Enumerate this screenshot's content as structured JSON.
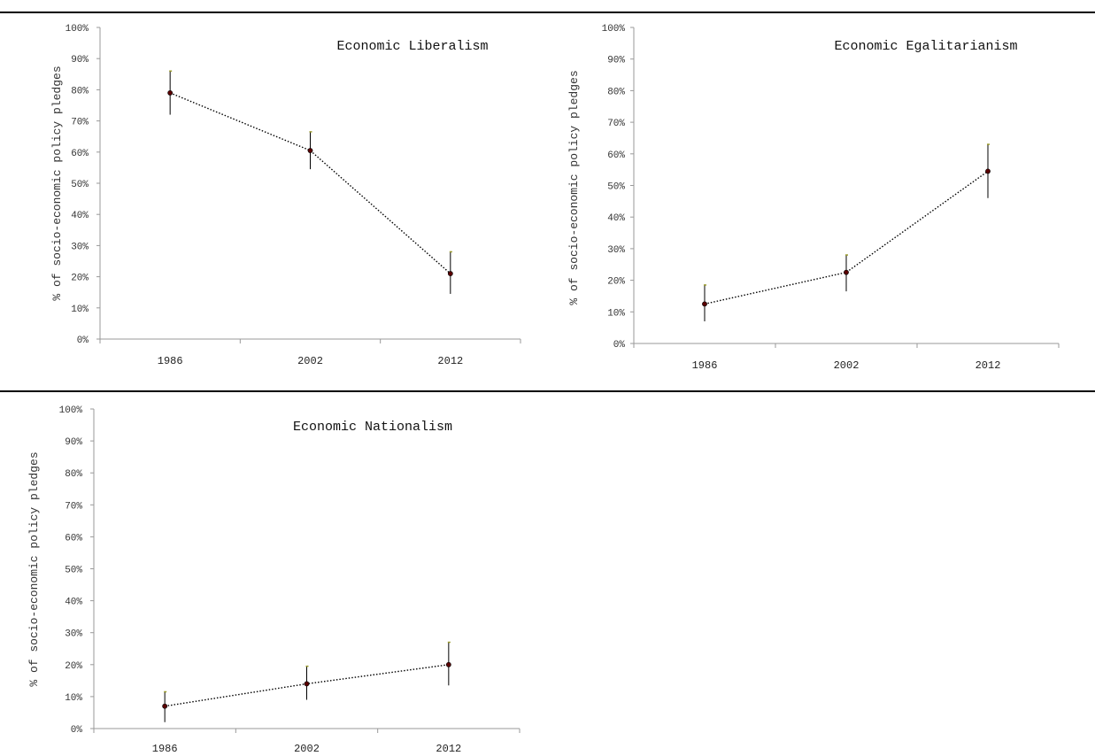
{
  "chart_data": [
    {
      "type": "line",
      "title": "Economic Liberalism",
      "ylabel": "% of socio-economic policy pledges",
      "xlabel": "",
      "categories": [
        "1986",
        "2002",
        "2012"
      ],
      "values": [
        79,
        60.5,
        21
      ],
      "error_low": [
        72,
        54.5,
        14.5
      ],
      "error_high": [
        86,
        66.5,
        28
      ],
      "ylim": [
        0,
        100
      ],
      "yticks": [
        "0%",
        "10%",
        "20%",
        "30%",
        "40%",
        "50%",
        "60%",
        "70%",
        "80%",
        "90%",
        "100%"
      ],
      "grid": false,
      "line_style": "dotted",
      "marker_color": "#5a0000"
    },
    {
      "type": "line",
      "title": "Economic Egalitarianism",
      "ylabel": "% of socio-economic policy pledges",
      "xlabel": "",
      "categories": [
        "1986",
        "2002",
        "2012"
      ],
      "values": [
        12.5,
        22.5,
        54.5
      ],
      "error_low": [
        7,
        16.5,
        46
      ],
      "error_high": [
        18.5,
        28,
        63
      ],
      "ylim": [
        0,
        100
      ],
      "yticks": [
        "0%",
        "10%",
        "20%",
        "30%",
        "40%",
        "50%",
        "60%",
        "70%",
        "80%",
        "90%",
        "100%"
      ],
      "grid": false,
      "line_style": "dotted",
      "marker_color": "#5a0000"
    },
    {
      "type": "line",
      "title": "Economic Nationalism",
      "ylabel": "% of socio-economic policy pledges",
      "xlabel": "",
      "categories": [
        "1986",
        "2002",
        "2012"
      ],
      "values": [
        7,
        14,
        20
      ],
      "error_low": [
        2,
        9,
        13.5
      ],
      "error_high": [
        11.5,
        19.5,
        27
      ],
      "ylim": [
        0,
        100
      ],
      "yticks": [
        "0%",
        "10%",
        "20%",
        "30%",
        "40%",
        "50%",
        "60%",
        "70%",
        "80%",
        "90%",
        "100%"
      ],
      "grid": false,
      "line_style": "dotted",
      "marker_color": "#5a0000"
    }
  ]
}
